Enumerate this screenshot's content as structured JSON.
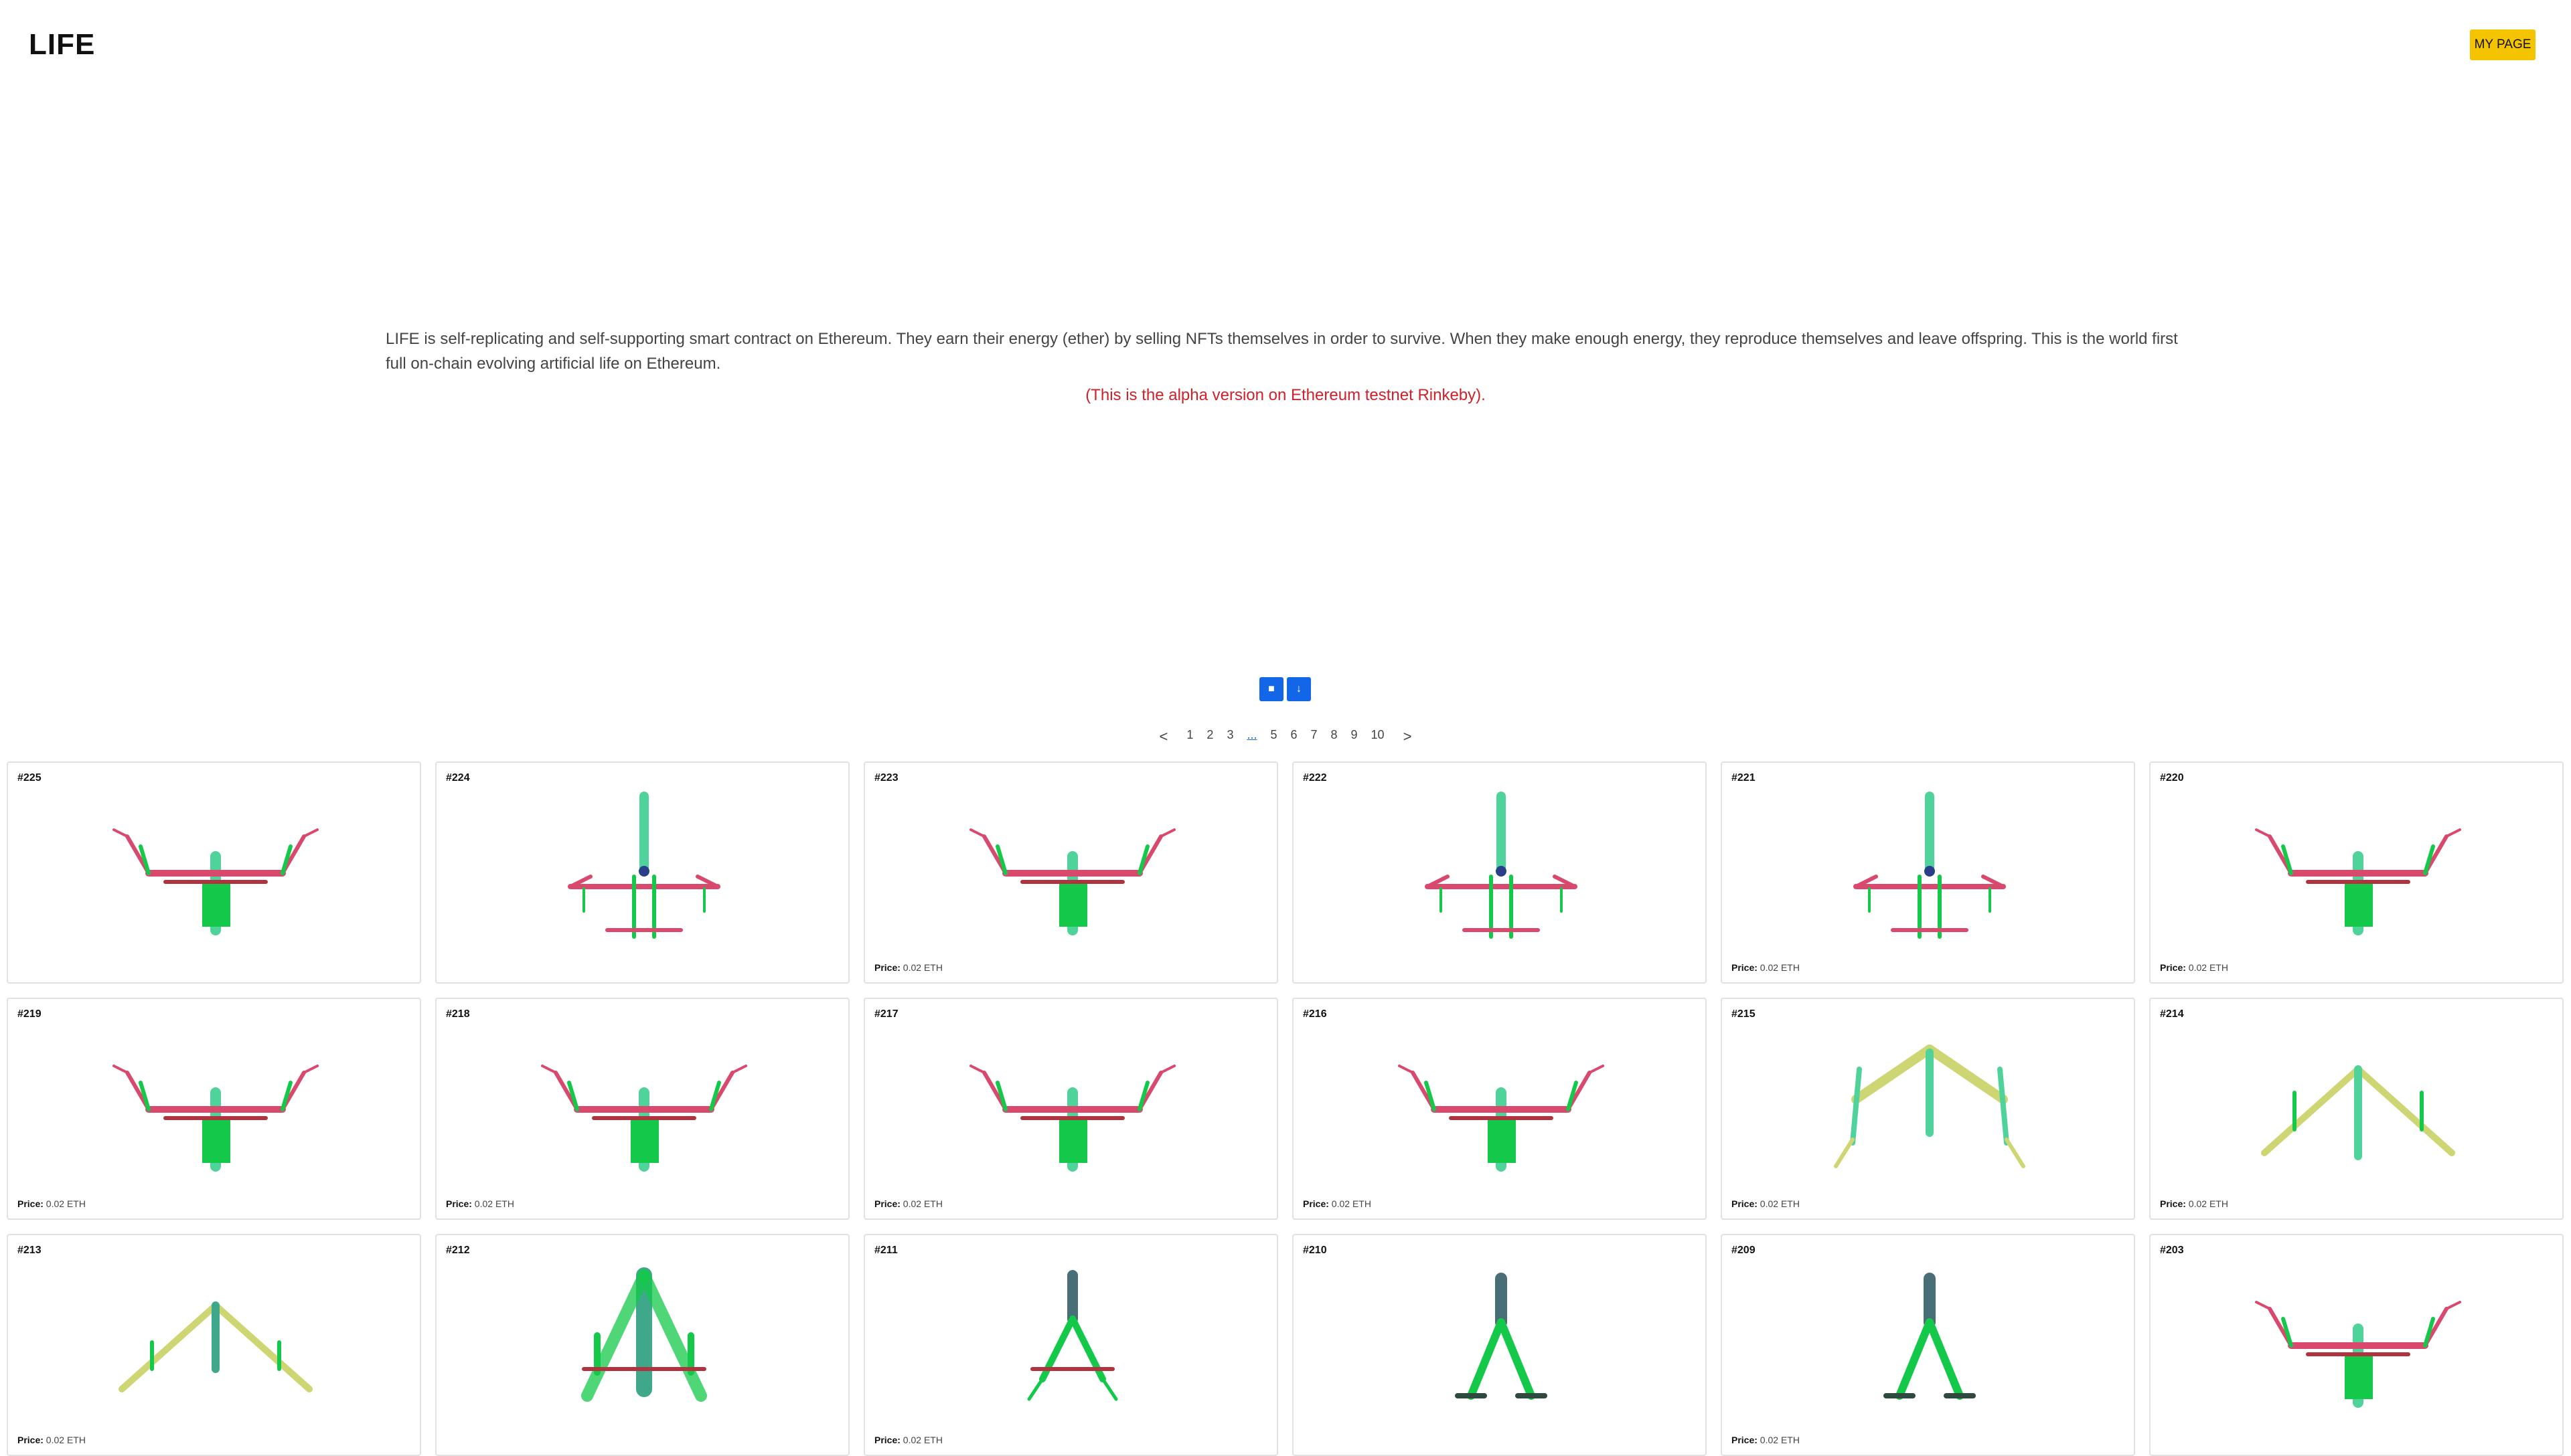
{
  "header": {
    "logo": "LIFE",
    "my_page_label": "MY PAGE"
  },
  "intro": {
    "text": "LIFE is self-replicating and self-supporting smart contract on Ethereum. They earn their energy (ether) by selling NFTs themselves in order to survive. When they make enough energy, they reproduce themselves and leave offspring. This is the world first full on-chain evolving artificial life on Ethereum.",
    "alpha_note": "(This is the alpha version on Ethereum testnet Rinkeby)."
  },
  "view_buttons": [
    {
      "name": "grid-view-button",
      "icon": "square-icon",
      "glyph": "■"
    },
    {
      "name": "sort-button",
      "icon": "down-arrow-icon",
      "glyph": "↓"
    }
  ],
  "pagination": {
    "prev": "<",
    "next": ">",
    "items": [
      "1",
      "2",
      "3",
      "...",
      "5",
      "6",
      "7",
      "8",
      "9",
      "10"
    ]
  },
  "price_label": "Price:",
  "cards": [
    {
      "id": "#225",
      "type": "red",
      "price": ""
    },
    {
      "id": "#224",
      "type": "tall",
      "price": ""
    },
    {
      "id": "#223",
      "type": "red",
      "price": "0.02 ETH"
    },
    {
      "id": "#222",
      "type": "tall",
      "price": ""
    },
    {
      "id": "#221",
      "type": "tall",
      "price": "0.02 ETH"
    },
    {
      "id": "#220",
      "type": "red",
      "price": "0.02 ETH"
    },
    {
      "id": "#219",
      "type": "red",
      "price": "0.02 ETH"
    },
    {
      "id": "#218",
      "type": "red",
      "price": "0.02 ETH"
    },
    {
      "id": "#217",
      "type": "red",
      "price": "0.02 ETH"
    },
    {
      "id": "#216",
      "type": "red",
      "price": "0.02 ETH"
    },
    {
      "id": "#215",
      "type": "yellow",
      "price": "0.02 ETH"
    },
    {
      "id": "#214",
      "type": "yellow2",
      "price": "0.02 ETH"
    },
    {
      "id": "#213",
      "type": "yellow3",
      "price": "0.02 ETH"
    },
    {
      "id": "#212",
      "type": "thick",
      "price": ""
    },
    {
      "id": "#211",
      "type": "forkdark",
      "price": "0.02 ETH"
    },
    {
      "id": "#210",
      "type": "fork",
      "price": ""
    },
    {
      "id": "#209",
      "type": "fork",
      "price": "0.02 ETH"
    },
    {
      "id": "#203",
      "type": "red",
      "price": ""
    }
  ],
  "colors": {
    "accent": "#1366e8",
    "my_page_bg": "#f5c400",
    "alpha_text": "#d0202a",
    "creature_green": "#14c94a",
    "creature_teal": "#4fd39a",
    "creature_pink": "#d9496e",
    "creature_yellow": "#cdd672"
  }
}
